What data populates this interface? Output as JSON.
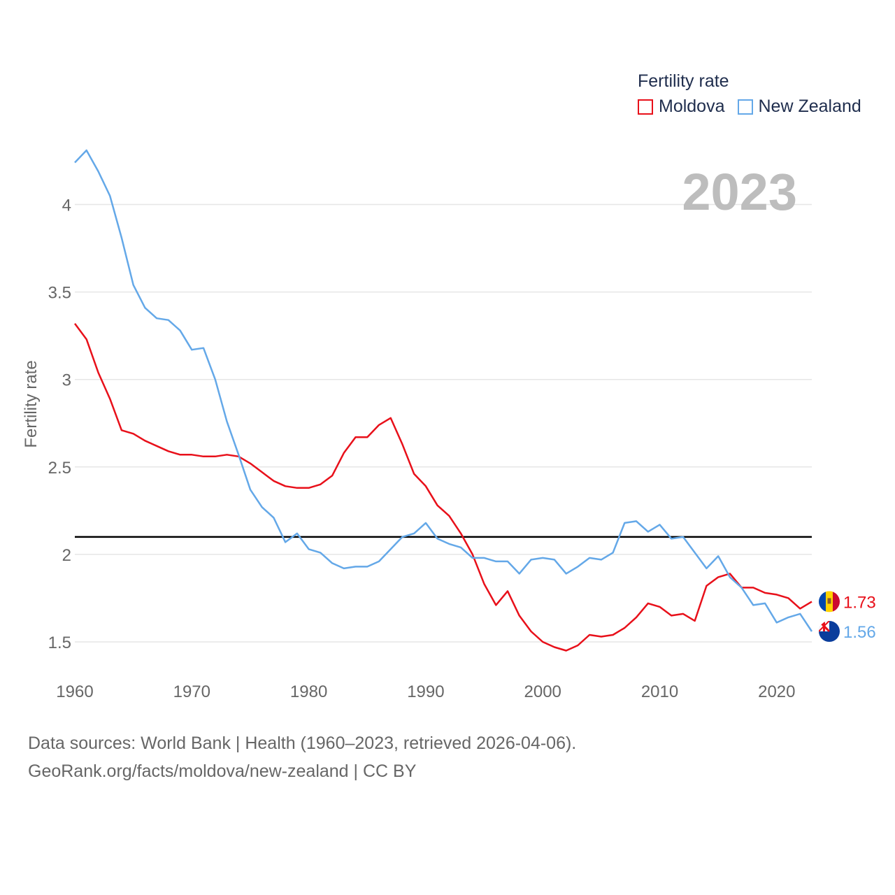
{
  "chart_data": {
    "type": "line",
    "year_label": "2023",
    "ylabel": "Fertility rate",
    "xlabel": "",
    "xlim": [
      1960,
      2023
    ],
    "ylim": [
      1.3,
      4.35
    ],
    "x_ticks": [
      1960,
      1970,
      1980,
      1990,
      2000,
      2010,
      2020
    ],
    "y_ticks": [
      1.5,
      2,
      2.5,
      3,
      3.5,
      4
    ],
    "y_tick_labels": [
      "1.5",
      "2",
      "2.5",
      "3",
      "3.5",
      "4"
    ],
    "reference_line": 2.1,
    "legend": {
      "title": "Fertility rate",
      "position": "top-right"
    },
    "x": [
      1960,
      1961,
      1962,
      1963,
      1964,
      1965,
      1966,
      1967,
      1968,
      1969,
      1970,
      1971,
      1972,
      1973,
      1974,
      1975,
      1976,
      1977,
      1978,
      1979,
      1980,
      1981,
      1982,
      1983,
      1984,
      1985,
      1986,
      1987,
      1988,
      1989,
      1990,
      1991,
      1992,
      1993,
      1994,
      1995,
      1996,
      1997,
      1998,
      1999,
      2000,
      2001,
      2002,
      2003,
      2004,
      2005,
      2006,
      2007,
      2008,
      2009,
      2010,
      2011,
      2012,
      2013,
      2014,
      2015,
      2016,
      2017,
      2018,
      2019,
      2020,
      2021,
      2022,
      2023
    ],
    "series": [
      {
        "name": "Moldova",
        "color": "#e8101a",
        "end_label": "1.73",
        "flag": "moldova-flag",
        "values": [
          3.32,
          3.23,
          3.04,
          2.89,
          2.71,
          2.69,
          2.65,
          2.62,
          2.59,
          2.57,
          2.57,
          2.56,
          2.56,
          2.57,
          2.56,
          2.52,
          2.47,
          2.42,
          2.39,
          2.38,
          2.38,
          2.4,
          2.45,
          2.58,
          2.67,
          2.67,
          2.74,
          2.78,
          2.63,
          2.46,
          2.39,
          2.28,
          2.22,
          2.12,
          2.0,
          1.83,
          1.71,
          1.79,
          1.65,
          1.56,
          1.5,
          1.47,
          1.45,
          1.48,
          1.54,
          1.53,
          1.54,
          1.58,
          1.64,
          1.72,
          1.7,
          1.65,
          1.66,
          1.62,
          1.82,
          1.87,
          1.89,
          1.81,
          1.81,
          1.78,
          1.77,
          1.75,
          1.69,
          1.73
        ]
      },
      {
        "name": "New Zealand",
        "color": "#64a8e8",
        "end_label": "1.56",
        "flag": "new-zealand-flag",
        "values": [
          4.24,
          4.31,
          4.19,
          4.05,
          3.81,
          3.54,
          3.41,
          3.35,
          3.34,
          3.28,
          3.17,
          3.18,
          3.0,
          2.76,
          2.57,
          2.37,
          2.27,
          2.21,
          2.07,
          2.12,
          2.03,
          2.01,
          1.95,
          1.92,
          1.93,
          1.93,
          1.96,
          2.03,
          2.1,
          2.12,
          2.18,
          2.09,
          2.06,
          2.04,
          1.98,
          1.98,
          1.96,
          1.96,
          1.89,
          1.97,
          1.98,
          1.97,
          1.89,
          1.93,
          1.98,
          1.97,
          2.01,
          2.18,
          2.19,
          2.13,
          2.17,
          2.09,
          2.1,
          2.01,
          1.92,
          1.99,
          1.87,
          1.81,
          1.71,
          1.72,
          1.61,
          1.64,
          1.66,
          1.56
        ]
      }
    ]
  },
  "footer": {
    "line1": "Data sources: World Bank | Health (1960–2023, retrieved 2026-04-06).",
    "line2": "GeoRank.org/facts/moldova/new-zealand | CC BY"
  }
}
